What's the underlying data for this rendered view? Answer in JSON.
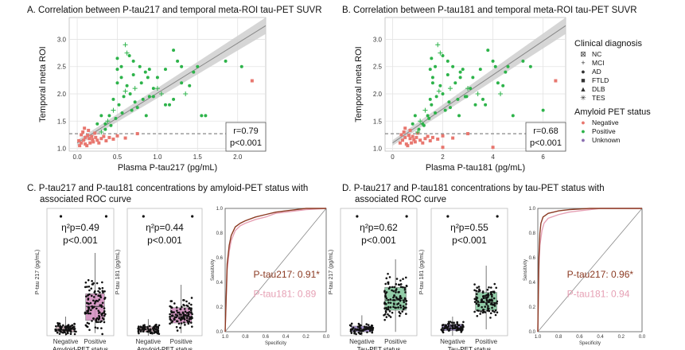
{
  "panel_titles": {
    "A": "A. Correlation between P-tau217 and temporal meta-ROI tau-PET SUVR",
    "B": "B. Correlation between P-tau181 and temporal meta-ROI tau-PET SUVR",
    "C1": "C. P-tau217 and P-tau181 concentrations by amyloid-PET status with",
    "C2": "associated ROC curve",
    "D1": "D. P-tau217 and P-tau181 concentrations by tau-PET status with",
    "D2": "associated ROC curve"
  },
  "legend": {
    "diagnosis_title": "Clinical diagnosis",
    "diagnosis": [
      {
        "label": "NC",
        "symbol": "⊠",
        "icon": "square-x-icon"
      },
      {
        "label": "MCI",
        "symbol": "+",
        "icon": "plus-icon"
      },
      {
        "label": "AD",
        "symbol": "●",
        "icon": "circle-icon"
      },
      {
        "label": "FTLD",
        "symbol": "■",
        "icon": "square-icon"
      },
      {
        "label": "DLB",
        "symbol": "▲",
        "icon": "triangle-icon"
      },
      {
        "label": "TES",
        "symbol": "✳",
        "icon": "asterisk-icon"
      }
    ],
    "amyloid_title": "Amyloid PET status",
    "amyloid": [
      {
        "label": "Negative",
        "color": "#e8776f"
      },
      {
        "label": "Positive",
        "color": "#2db34a"
      },
      {
        "label": "Unknown",
        "color": "#8a6fb0"
      }
    ]
  },
  "colors": {
    "negative": "#e8776f",
    "positive": "#2db34a",
    "unknown": "#8a6fb0",
    "pink_box": "#d18abd",
    "green_box": "#7fc59a",
    "purple_box": "#9b84c8",
    "roc_217": "#8b3a22",
    "roc_181": "#e6a0b4",
    "band": "#cfcfcf"
  },
  "chart_data": [
    {
      "id": "A",
      "type": "scatter",
      "title": "A. Correlation between P-tau217 and temporal meta-ROI tau-PET SUVR",
      "xlabel": "Plasma P-tau217 (pg/mL)",
      "ylabel": "Temporal meta ROI",
      "xlim": [
        -0.1,
        2.35
      ],
      "ylim": [
        0.95,
        3.4
      ],
      "xticks": [
        0.0,
        0.5,
        1.0,
        1.5,
        2.0
      ],
      "yticks": [
        1.0,
        1.5,
        2.0,
        2.5,
        3.0
      ],
      "xtick_labels": [
        "0.0",
        "0.5",
        "1.0",
        "1.5",
        "2.0"
      ],
      "ytick_labels": [
        "1.0",
        "1.5",
        "2.0",
        "2.5",
        "3.0"
      ],
      "threshold_y": 1.27,
      "fit_line": {
        "x0": 0.0,
        "y0": 1.1,
        "x1": 2.35,
        "y1": 3.25
      },
      "annotation": [
        "r=0.79",
        "p<0.001"
      ],
      "negative_points": [
        [
          0.05,
          1.1
        ],
        [
          0.08,
          1.15
        ],
        [
          0.1,
          1.2
        ],
        [
          0.12,
          1.05
        ],
        [
          0.15,
          1.18
        ],
        [
          0.18,
          1.22
        ],
        [
          0.2,
          1.12
        ],
        [
          0.22,
          1.28
        ],
        [
          0.25,
          1.15
        ],
        [
          0.05,
          1.25
        ],
        [
          0.07,
          1.3
        ],
        [
          0.1,
          1.08
        ],
        [
          0.13,
          1.24
        ],
        [
          0.16,
          1.1
        ],
        [
          0.19,
          1.16
        ],
        [
          0.23,
          1.2
        ],
        [
          0.27,
          1.1
        ],
        [
          0.3,
          1.18
        ],
        [
          0.33,
          1.22
        ],
        [
          0.36,
          1.14
        ],
        [
          0.4,
          1.2
        ],
        [
          0.45,
          1.17
        ],
        [
          0.5,
          1.23
        ],
        [
          0.6,
          1.19
        ],
        [
          0.75,
          1.27
        ],
        [
          2.18,
          2.24
        ],
        [
          0.09,
          1.37
        ],
        [
          0.14,
          1.33
        ],
        [
          0.02,
          1.14
        ],
        [
          0.03,
          1.05
        ]
      ],
      "positive_points": [
        [
          0.3,
          1.3
        ],
        [
          0.35,
          1.45
        ],
        [
          0.4,
          1.6
        ],
        [
          0.45,
          1.9
        ],
        [
          0.5,
          2.2
        ],
        [
          0.55,
          2.5
        ],
        [
          0.6,
          2.9
        ],
        [
          0.65,
          2.7
        ],
        [
          0.7,
          2.6
        ],
        [
          0.55,
          2.3
        ],
        [
          0.5,
          2.45
        ],
        [
          0.62,
          2.15
        ],
        [
          0.72,
          2.1
        ],
        [
          0.8,
          2.2
        ],
        [
          0.85,
          2.4
        ],
        [
          0.9,
          1.95
        ],
        [
          0.95,
          2.1
        ],
        [
          1.0,
          2.3
        ],
        [
          1.05,
          2.0
        ],
        [
          1.1,
          2.45
        ],
        [
          1.15,
          1.8
        ],
        [
          1.2,
          2.8
        ],
        [
          1.25,
          2.6
        ],
        [
          1.3,
          2.2
        ],
        [
          1.35,
          2.0
        ],
        [
          1.4,
          2.15
        ],
        [
          1.5,
          2.5
        ],
        [
          1.6,
          1.6
        ],
        [
          1.85,
          2.6
        ],
        [
          2.05,
          2.5
        ],
        [
          0.45,
          1.7
        ],
        [
          0.52,
          1.8
        ],
        [
          0.58,
          1.95
        ],
        [
          0.66,
          2.0
        ],
        [
          0.75,
          1.75
        ],
        [
          0.82,
          1.9
        ],
        [
          0.38,
          1.5
        ],
        [
          0.42,
          1.42
        ],
        [
          0.48,
          1.55
        ],
        [
          0.56,
          1.65
        ],
        [
          0.7,
          2.35
        ],
        [
          0.9,
          2.45
        ],
        [
          1.0,
          2.1
        ],
        [
          1.1,
          1.8
        ],
        [
          1.2,
          1.9
        ],
        [
          0.68,
          1.7
        ],
        [
          0.3,
          1.6
        ],
        [
          0.35,
          1.35
        ],
        [
          0.6,
          2.05
        ],
        [
          0.78,
          2.5
        ],
        [
          0.88,
          2.3
        ],
        [
          1.45,
          2.4
        ],
        [
          0.25,
          1.45
        ],
        [
          0.5,
          2.65
        ],
        [
          0.62,
          2.75
        ],
        [
          1.3,
          2.5
        ],
        [
          1.55,
          1.6
        ],
        [
          0.95,
          1.95
        ],
        [
          0.86,
          1.6
        ],
        [
          0.72,
          1.85
        ]
      ]
    },
    {
      "id": "B",
      "type": "scatter",
      "title": "B. Correlation between P-tau181 and temporal meta-ROI tau-PET SUVR",
      "xlabel": "Plasma P-tau181 (pg/mL)",
      "ylabel": "Temporal meta ROI",
      "xlim": [
        -0.3,
        6.9
      ],
      "ylim": [
        0.95,
        3.4
      ],
      "xticks": [
        0,
        2,
        4,
        6
      ],
      "yticks": [
        1.0,
        1.5,
        2.0,
        2.5,
        3.0
      ],
      "xtick_labels": [
        "0",
        "2",
        "4",
        "6"
      ],
      "ytick_labels": [
        "1.0",
        "1.5",
        "2.0",
        "2.5",
        "3.0"
      ],
      "threshold_y": 1.27,
      "fit_line": {
        "x0": 0.0,
        "y0": 1.1,
        "x1": 6.9,
        "y1": 3.25
      },
      "annotation": [
        "r=0.68",
        "p<0.001"
      ],
      "negative_points": [
        [
          0.3,
          1.1
        ],
        [
          0.4,
          1.15
        ],
        [
          0.5,
          1.2
        ],
        [
          0.6,
          1.05
        ],
        [
          0.7,
          1.18
        ],
        [
          0.8,
          1.22
        ],
        [
          0.9,
          1.12
        ],
        [
          1.0,
          1.28
        ],
        [
          1.1,
          1.15
        ],
        [
          0.35,
          1.25
        ],
        [
          0.45,
          1.3
        ],
        [
          0.55,
          1.08
        ],
        [
          0.65,
          1.24
        ],
        [
          0.75,
          1.1
        ],
        [
          0.85,
          1.16
        ],
        [
          0.95,
          1.2
        ],
        [
          1.2,
          1.1
        ],
        [
          1.3,
          1.18
        ],
        [
          1.4,
          1.22
        ],
        [
          1.5,
          1.14
        ],
        [
          1.6,
          1.2
        ],
        [
          1.8,
          1.17
        ],
        [
          2.0,
          1.23
        ],
        [
          2.4,
          1.19
        ],
        [
          3.0,
          1.27
        ],
        [
          6.5,
          2.24
        ],
        [
          0.5,
          1.37
        ],
        [
          0.7,
          1.33
        ],
        [
          4.0,
          1.02
        ],
        [
          2.0,
          1.02
        ]
      ],
      "positive_points": [
        [
          1.0,
          1.3
        ],
        [
          1.2,
          1.45
        ],
        [
          1.4,
          1.6
        ],
        [
          1.5,
          1.9
        ],
        [
          1.6,
          2.2
        ],
        [
          1.7,
          2.5
        ],
        [
          1.8,
          2.9
        ],
        [
          2.0,
          2.7
        ],
        [
          2.2,
          2.6
        ],
        [
          1.6,
          2.3
        ],
        [
          1.5,
          2.45
        ],
        [
          1.9,
          2.15
        ],
        [
          2.3,
          2.1
        ],
        [
          2.5,
          2.2
        ],
        [
          2.7,
          2.4
        ],
        [
          2.9,
          1.95
        ],
        [
          3.1,
          2.1
        ],
        [
          3.2,
          2.3
        ],
        [
          3.4,
          2.0
        ],
        [
          3.5,
          2.45
        ],
        [
          3.7,
          1.8
        ],
        [
          3.8,
          2.8
        ],
        [
          4.0,
          2.6
        ],
        [
          4.2,
          2.2
        ],
        [
          4.3,
          2.0
        ],
        [
          4.4,
          2.15
        ],
        [
          4.6,
          2.5
        ],
        [
          4.8,
          1.6
        ],
        [
          5.2,
          2.6
        ],
        [
          5.5,
          2.5
        ],
        [
          1.3,
          1.7
        ],
        [
          1.55,
          1.8
        ],
        [
          1.75,
          1.95
        ],
        [
          2.0,
          2.0
        ],
        [
          2.3,
          1.75
        ],
        [
          2.6,
          1.9
        ],
        [
          1.1,
          1.5
        ],
        [
          1.25,
          1.42
        ],
        [
          1.45,
          1.55
        ],
        [
          1.7,
          1.65
        ],
        [
          2.2,
          2.35
        ],
        [
          2.8,
          2.45
        ],
        [
          3.0,
          2.1
        ],
        [
          3.3,
          1.8
        ],
        [
          3.6,
          1.9
        ],
        [
          2.1,
          1.7
        ],
        [
          0.9,
          1.6
        ],
        [
          1.05,
          1.35
        ],
        [
          1.85,
          2.05
        ],
        [
          2.4,
          2.5
        ],
        [
          2.7,
          2.3
        ],
        [
          4.5,
          2.4
        ],
        [
          0.8,
          1.45
        ],
        [
          1.55,
          2.65
        ],
        [
          1.9,
          2.75
        ],
        [
          4.1,
          2.5
        ],
        [
          6.0,
          1.7
        ],
        [
          2.95,
          1.95
        ],
        [
          2.65,
          1.6
        ],
        [
          2.25,
          1.85
        ]
      ]
    },
    {
      "id": "C1",
      "type": "box",
      "ylabel": "P-tau 217 (pg/mL)",
      "xlabel": "Amyloid-PET status",
      "categories": [
        "Negative",
        "Positive"
      ],
      "ylim": [
        0,
        1.0
      ],
      "boxes": [
        {
          "q1": 0.03,
          "median": 0.05,
          "q3": 0.075,
          "whisker_low": 0.0,
          "whisker_high": 0.15
        },
        {
          "q1": 0.12,
          "median": 0.23,
          "q3": 0.33,
          "whisker_low": 0.02,
          "whisker_high": 0.65
        }
      ],
      "annotation": [
        "η²p=0.49",
        "p<0.001"
      ]
    },
    {
      "id": "C2",
      "type": "box",
      "ylabel": "P-tau 181 (pg/mL)",
      "xlabel": "Amyloid-PET status",
      "categories": [
        "Negative",
        "Positive"
      ],
      "ylim": [
        0,
        1.0
      ],
      "boxes": [
        {
          "q1": 0.03,
          "median": 0.05,
          "q3": 0.07,
          "whisker_low": 0.0,
          "whisker_high": 0.13
        },
        {
          "q1": 0.1,
          "median": 0.15,
          "q3": 0.22,
          "whisker_low": 0.02,
          "whisker_high": 0.4
        }
      ],
      "annotation": [
        "η²p=0.44",
        "p<0.001"
      ]
    },
    {
      "id": "C3",
      "type": "roc",
      "xlabel": "Specificity",
      "ylabel": "Sensitivity",
      "xticks": [
        1.0,
        0.8,
        0.6,
        0.4,
        0.2,
        0.0
      ],
      "yticks": [
        0.0,
        0.2,
        0.4,
        0.6,
        0.8,
        1.0
      ],
      "xtick_labels": [
        "1.0",
        "0.8",
        "0.6",
        "0.4",
        "0.2",
        "0.0"
      ],
      "ytick_labels": [
        "0.0",
        "0.2",
        "0.4",
        "0.6",
        "0.8",
        "1.0"
      ],
      "series": [
        {
          "name": "P-tau217: 0.91*",
          "fpr": [
            0,
            0.02,
            0.04,
            0.06,
            0.1,
            0.15,
            0.2,
            0.3,
            0.4,
            0.5,
            0.6,
            0.7,
            0.8,
            1.0
          ],
          "tpr": [
            0,
            0.55,
            0.7,
            0.78,
            0.85,
            0.88,
            0.9,
            0.93,
            0.95,
            0.97,
            0.98,
            0.99,
            1.0,
            1.0
          ]
        },
        {
          "name": "P-tau181: 0.89",
          "fpr": [
            0,
            0.02,
            0.04,
            0.06,
            0.1,
            0.15,
            0.2,
            0.3,
            0.4,
            0.5,
            0.6,
            0.7,
            0.8,
            1.0
          ],
          "tpr": [
            0,
            0.5,
            0.65,
            0.74,
            0.82,
            0.86,
            0.88,
            0.91,
            0.93,
            0.96,
            0.97,
            0.98,
            0.99,
            1.0
          ]
        }
      ]
    },
    {
      "id": "D1",
      "type": "box",
      "ylabel": "P-tau 217 (pg/mL)",
      "xlabel": "Tau-PET status",
      "categories": [
        "Negative",
        "Positive"
      ],
      "ylim": [
        0,
        1.0
      ],
      "boxes": [
        {
          "q1": 0.03,
          "median": 0.05,
          "q3": 0.075,
          "whisker_low": 0.0,
          "whisker_high": 0.16
        },
        {
          "q1": 0.2,
          "median": 0.28,
          "q3": 0.38,
          "whisker_low": 0.03,
          "whisker_high": 0.6
        }
      ],
      "annotation": [
        "η²p=0.62",
        "p<0.001"
      ]
    },
    {
      "id": "D2",
      "type": "box",
      "ylabel": "P-tau 181 (pg/mL)",
      "xlabel": "Tau-PET status",
      "categories": [
        "Negative",
        "Positive"
      ],
      "ylim": [
        0,
        1.0
      ],
      "boxes": [
        {
          "q1": 0.04,
          "median": 0.06,
          "q3": 0.09,
          "whisker_low": 0.0,
          "whisker_high": 0.15
        },
        {
          "q1": 0.2,
          "median": 0.26,
          "q3": 0.34,
          "whisker_low": 0.05,
          "whisker_high": 0.55
        }
      ],
      "annotation": [
        "η²p=0.55",
        "p<0.001"
      ]
    },
    {
      "id": "D3",
      "type": "roc",
      "xlabel": "Specificity",
      "ylabel": "Sensitivity",
      "xticks": [
        1.0,
        0.8,
        0.6,
        0.4,
        0.2,
        0.0
      ],
      "yticks": [
        0.0,
        0.2,
        0.4,
        0.6,
        0.8,
        1.0
      ],
      "xtick_labels": [
        "1.0",
        "0.8",
        "0.6",
        "0.4",
        "0.2",
        "0.0"
      ],
      "ytick_labels": [
        "0.0",
        "0.2",
        "0.4",
        "0.6",
        "0.8",
        "1.0"
      ],
      "series": [
        {
          "name": "P-tau217: 0.96*",
          "fpr": [
            0,
            0.01,
            0.02,
            0.03,
            0.05,
            0.1,
            0.15,
            0.2,
            0.3,
            0.5,
            1.0
          ],
          "tpr": [
            0,
            0.6,
            0.8,
            0.88,
            0.93,
            0.96,
            0.97,
            0.98,
            0.99,
            1.0,
            1.0
          ]
        },
        {
          "name": "P-tau181: 0.94",
          "fpr": [
            0,
            0.01,
            0.02,
            0.04,
            0.06,
            0.1,
            0.2,
            0.3,
            0.4,
            0.6,
            1.0
          ],
          "tpr": [
            0,
            0.5,
            0.7,
            0.82,
            0.88,
            0.92,
            0.95,
            0.97,
            0.98,
            1.0,
            1.0
          ]
        }
      ]
    }
  ]
}
